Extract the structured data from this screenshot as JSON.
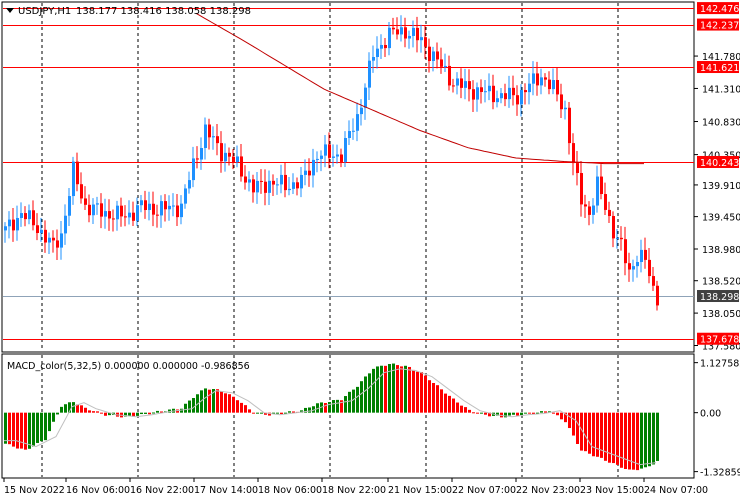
{
  "header": {
    "dropdown_icon": "triangle-down-icon",
    "symbol": "USDJPY,H1",
    "ohlc": "138.177 138.416 138.058 138.298"
  },
  "price_axis": {
    "ticks": [
      "141.780",
      "141.310",
      "140.830",
      "140.350",
      "139.910",
      "139.450",
      "138.980",
      "138.520",
      "138.050",
      "137.580"
    ],
    "tick_values": [
      141.78,
      141.31,
      140.83,
      140.35,
      139.91,
      139.45,
      138.98,
      138.52,
      138.05,
      137.58
    ]
  },
  "horizontal_levels": [
    {
      "label": "142.476",
      "value": 142.476,
      "color": "#ff0000",
      "kind": "red-level"
    },
    {
      "label": "142.237",
      "value": 142.237,
      "color": "#ff0000",
      "kind": "red-level"
    },
    {
      "label": "141.621",
      "value": 141.621,
      "color": "#ff0000",
      "kind": "red-level"
    },
    {
      "label": "140.243",
      "value": 140.243,
      "color": "#ff0000",
      "kind": "red-level"
    },
    {
      "label": "137.678",
      "value": 137.678,
      "color": "#ff0000",
      "kind": "red-level"
    }
  ],
  "current_price": {
    "label": "138.298",
    "value": 138.298,
    "color": "#404040"
  },
  "macd": {
    "title": "MACD_color(5,32,5) 0.000000 0.000000 -0.986856",
    "ticks": [
      "1.127582",
      "0.00",
      "-1.328591"
    ],
    "tick_values": [
      1.127582,
      0.0,
      -1.328591
    ]
  },
  "time_axis": {
    "labels": [
      "15 Nov 2022",
      "16 Nov 06:00",
      "16 Nov 22:00",
      "17 Nov 14:00",
      "18 Nov 06:00",
      "18 Nov 22:00",
      "21 Nov 15:00",
      "22 Nov 07:00",
      "22 Nov 23:00",
      "23 Nov 15:00",
      "24 Nov 07:00"
    ]
  },
  "colors": {
    "bull": "#1e90ff",
    "bear": "#ff0000",
    "macd_up": "#008000",
    "macd_down": "#ff0000",
    "ma_line": "#c00000",
    "grid": "#000000",
    "signal": "#c0c0c0"
  },
  "chart_data": {
    "type": "candlestick",
    "title": "USDJPY,H1",
    "price_range": [
      137.5,
      142.55
    ],
    "candle_count": 164,
    "price_path": [
      [
        0,
        139.25
      ],
      [
        4,
        139.5
      ],
      [
        8,
        139.3
      ],
      [
        12,
        139.0
      ],
      [
        14,
        139.2
      ],
      [
        17,
        140.1
      ],
      [
        20,
        139.6
      ],
      [
        25,
        139.5
      ],
      [
        30,
        139.45
      ],
      [
        34,
        139.6
      ],
      [
        38,
        139.55
      ],
      [
        44,
        139.6
      ],
      [
        47,
        140.2
      ],
      [
        50,
        140.7
      ],
      [
        54,
        140.4
      ],
      [
        58,
        140.2
      ],
      [
        62,
        139.85
      ],
      [
        66,
        139.95
      ],
      [
        70,
        139.9
      ],
      [
        74,
        139.95
      ],
      [
        78,
        140.35
      ],
      [
        84,
        140.35
      ],
      [
        88,
        140.9
      ],
      [
        92,
        141.8
      ],
      [
        96,
        142.1
      ],
      [
        100,
        142.15
      ],
      [
        104,
        142.0
      ],
      [
        108,
        141.7
      ],
      [
        112,
        141.4
      ],
      [
        116,
        141.3
      ],
      [
        120,
        141.25
      ],
      [
        124,
        141.2
      ],
      [
        128,
        141.2
      ],
      [
        131,
        141.35
      ],
      [
        134,
        141.5
      ],
      [
        137,
        141.3
      ],
      [
        140,
        141.0
      ],
      [
        142,
        140.2
      ],
      [
        144,
        139.7
      ],
      [
        146,
        139.5
      ],
      [
        148,
        139.9
      ],
      [
        150,
        139.6
      ],
      [
        152,
        139.25
      ],
      [
        154,
        139.0
      ],
      [
        156,
        138.65
      ],
      [
        158,
        138.9
      ],
      [
        160,
        138.8
      ],
      [
        162,
        138.4
      ],
      [
        163,
        138.298
      ]
    ],
    "moving_average": [
      [
        48,
        142.4
      ],
      [
        60,
        142.0
      ],
      [
        80,
        141.3
      ],
      [
        92,
        141.0
      ],
      [
        104,
        140.7
      ],
      [
        116,
        140.45
      ],
      [
        128,
        140.3
      ],
      [
        140,
        140.25
      ],
      [
        150,
        140.22
      ],
      [
        160,
        140.22
      ]
    ],
    "macd_histogram_path": [
      [
        0,
        -0.7
      ],
      [
        5,
        -0.85
      ],
      [
        10,
        -0.6
      ],
      [
        14,
        0.15
      ],
      [
        17,
        0.25
      ],
      [
        20,
        0.1
      ],
      [
        25,
        -0.05
      ],
      [
        30,
        -0.1
      ],
      [
        34,
        -0.05
      ],
      [
        38,
        0.02
      ],
      [
        44,
        0.1
      ],
      [
        47,
        0.35
      ],
      [
        50,
        0.55
      ],
      [
        54,
        0.5
      ],
      [
        58,
        0.3
      ],
      [
        62,
        0.0
      ],
      [
        66,
        -0.05
      ],
      [
        70,
        0.0
      ],
      [
        74,
        0.05
      ],
      [
        78,
        0.2
      ],
      [
        84,
        0.3
      ],
      [
        88,
        0.6
      ],
      [
        92,
        1.0
      ],
      [
        96,
        1.1
      ],
      [
        100,
        1.05
      ],
      [
        104,
        0.9
      ],
      [
        108,
        0.6
      ],
      [
        112,
        0.3
      ],
      [
        116,
        0.05
      ],
      [
        120,
        -0.05
      ],
      [
        124,
        -0.1
      ],
      [
        128,
        -0.05
      ],
      [
        132,
        -0.02
      ],
      [
        136,
        0.05
      ],
      [
        140,
        -0.2
      ],
      [
        144,
        -0.85
      ],
      [
        148,
        -1.0
      ],
      [
        152,
        -1.15
      ],
      [
        156,
        -1.3
      ],
      [
        160,
        -1.25
      ],
      [
        163,
        -1.1
      ]
    ]
  }
}
